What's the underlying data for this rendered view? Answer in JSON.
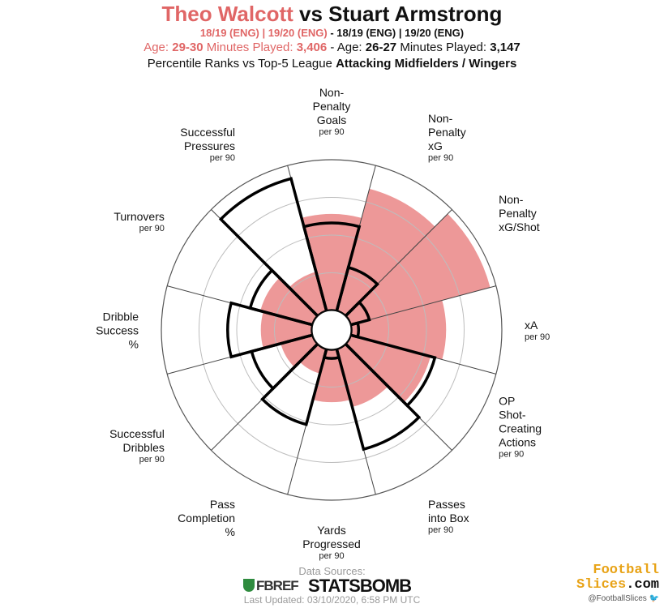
{
  "header": {
    "player1": "Theo Walcott",
    "vs": "vs",
    "player2": "Stuart Armstrong",
    "p1_seasons": "18/19 (ENG)  | 19/20 (ENG)",
    "p2_seasons": "- 18/19 (ENG)  | 19/20 (ENG)",
    "p1_age_label": "Age:",
    "p1_age": "29-30",
    "p1_minutes_label": "Minutes Played:",
    "p1_minutes": "3,406",
    "p2_age_label": "- Age:",
    "p2_age": "26-27",
    "p2_minutes_label": "Minutes Played:",
    "p2_minutes": "3,147",
    "subtitle_prefix": "Percentile Ranks vs Top-5 League",
    "subtitle_bold": "Attacking Midfielders / Wingers"
  },
  "chart_data": {
    "type": "radar",
    "rlim": [
      0,
      100
    ],
    "colors": {
      "player1_fill": "#ed9898",
      "player2_outline": "#000000",
      "grid": "#bdbdbd"
    },
    "categories": [
      {
        "label": "Non-\nPenalty\nGoals",
        "sub": "per 90"
      },
      {
        "label": "Non-\nPenalty\nxG",
        "sub": "per 90"
      },
      {
        "label": "Non-\nPenalty\nxG/Shot",
        "sub": ""
      },
      {
        "label": "xA",
        "sub": "per 90"
      },
      {
        "label": "OP\nShot-\nCreating\nActions",
        "sub": "per 90"
      },
      {
        "label": "Passes\ninto Box",
        "sub": "per 90"
      },
      {
        "label": "Yards\nProgressed",
        "sub": "per 90"
      },
      {
        "label": "Pass\nCompletion\n%",
        "sub": ""
      },
      {
        "label": "Successful\nDribbles",
        "sub": "per 90"
      },
      {
        "label": "Dribble\nSuccess\n%",
        "sub": ""
      },
      {
        "label": "Turnovers",
        "sub": "per 90"
      },
      {
        "label": "Successful\nPressures",
        "sub": "per 90"
      }
    ],
    "series": [
      {
        "name": "Theo Walcott",
        "values": [
          64,
          84,
          96,
          63,
          55,
          40,
          35,
          17,
          22,
          34,
          36,
          27
        ]
      },
      {
        "name": "Stuart Armstrong",
        "values": [
          58,
          30,
          13,
          5,
          58,
          69,
          6,
          52,
          42,
          56,
          43,
          91
        ]
      }
    ]
  },
  "footer": {
    "sources_label": "Data Sources:",
    "fbref": "FBREF",
    "statsbomb": "STATSBOMB",
    "updated": "Last Updated: 03/10/2020, 6:58 PM UTC",
    "brand_line1": "Football",
    "brand_line2a": "Slices",
    "brand_line2b": ".com",
    "handle": "@FootballSlices"
  }
}
